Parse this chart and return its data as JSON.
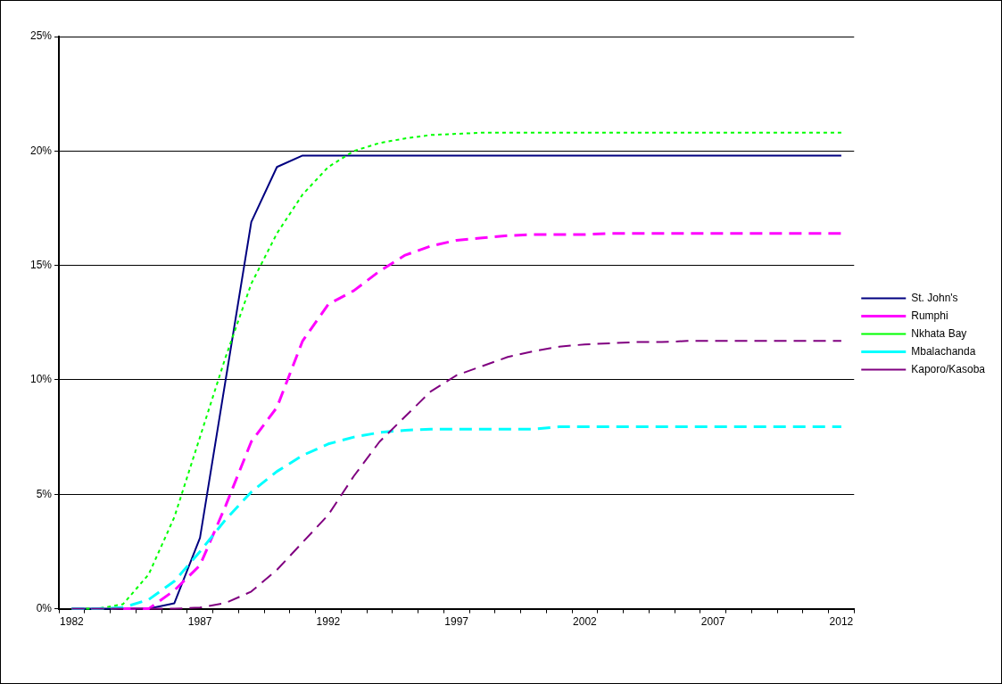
{
  "chart_data": {
    "type": "line",
    "categories": [
      "1982",
      null,
      null,
      null,
      null,
      "1987",
      null,
      null,
      null,
      null,
      "1992",
      null,
      null,
      null,
      null,
      "1997",
      null,
      null,
      null,
      null,
      "2002",
      null,
      null,
      null,
      null,
      "2007",
      null,
      null,
      null,
      null,
      "2012"
    ],
    "series": [
      {
        "name": "St. John's",
        "color": "#000080",
        "line_style": "solid",
        "values": [
          0,
          0,
          0,
          0,
          0.24,
          3.1,
          10.0,
          16.9,
          19.3,
          19.8,
          19.8,
          19.8,
          19.8,
          19.8,
          19.8,
          19.8,
          19.8,
          19.8,
          19.8,
          19.8,
          19.8,
          19.8,
          19.8,
          19.8,
          19.8,
          19.8,
          19.8,
          19.8,
          19.8,
          19.8,
          19.8
        ]
      },
      {
        "name": "Rumphi",
        "color": "#ff00ff",
        "line_style": "dashed",
        "values": [
          null,
          null,
          0,
          0,
          0.8,
          1.9,
          4.5,
          7.3,
          8.8,
          11.7,
          13.3,
          13.9,
          14.75,
          15.45,
          15.85,
          16.1,
          16.2,
          16.3,
          16.35,
          16.35,
          16.35,
          16.4,
          16.4,
          16.4,
          16.4,
          16.4,
          16.4,
          16.4,
          16.4,
          16.4,
          16.4
        ]
      },
      {
        "name": "Nkhata Bay",
        "color": "#00ff00",
        "line_style": "dotted",
        "values": [
          0,
          0,
          0.2,
          1.5,
          4.0,
          7.5,
          11.0,
          14.2,
          16.4,
          18.1,
          19.3,
          20.0,
          20.35,
          20.55,
          20.7,
          20.75,
          20.8,
          20.8,
          20.8,
          20.8,
          20.8,
          20.8,
          20.8,
          20.8,
          20.8,
          20.8,
          20.8,
          20.8,
          20.8,
          20.8,
          20.8
        ]
      },
      {
        "name": "Mbalachanda",
        "color": "#00ffff",
        "line_style": "dashed",
        "values": [
          0,
          0,
          0.05,
          0.4,
          1.2,
          2.5,
          3.9,
          5.1,
          6.0,
          6.7,
          7.2,
          7.5,
          7.7,
          7.8,
          7.85,
          7.85,
          7.85,
          7.85,
          7.85,
          7.95,
          7.95,
          7.95,
          7.95,
          7.95,
          7.95,
          7.95,
          7.95,
          7.95,
          7.95,
          7.95,
          7.95
        ]
      },
      {
        "name": "Kaporo/Kasoba",
        "color": "#800080",
        "line_style": "dashed",
        "values": [
          0,
          0,
          0,
          0,
          0,
          0.05,
          0.25,
          0.75,
          1.7,
          2.9,
          4.1,
          5.8,
          7.3,
          8.4,
          9.5,
          10.2,
          10.6,
          11.0,
          11.25,
          11.45,
          11.55,
          11.6,
          11.65,
          11.65,
          11.7,
          11.7,
          11.7,
          11.7,
          11.7,
          11.7,
          11.7
        ]
      }
    ],
    "ylim": [
      0,
      25
    ],
    "yticks": [
      {
        "value": 0,
        "label": "0%"
      },
      {
        "value": 5,
        "label": "5%"
      },
      {
        "value": 10,
        "label": "10%"
      },
      {
        "value": 15,
        "label": "15%"
      },
      {
        "value": 20,
        "label": "20%"
      },
      {
        "value": 25,
        "label": "25%"
      }
    ],
    "grid": "y",
    "legend": "right",
    "marker": "none"
  }
}
